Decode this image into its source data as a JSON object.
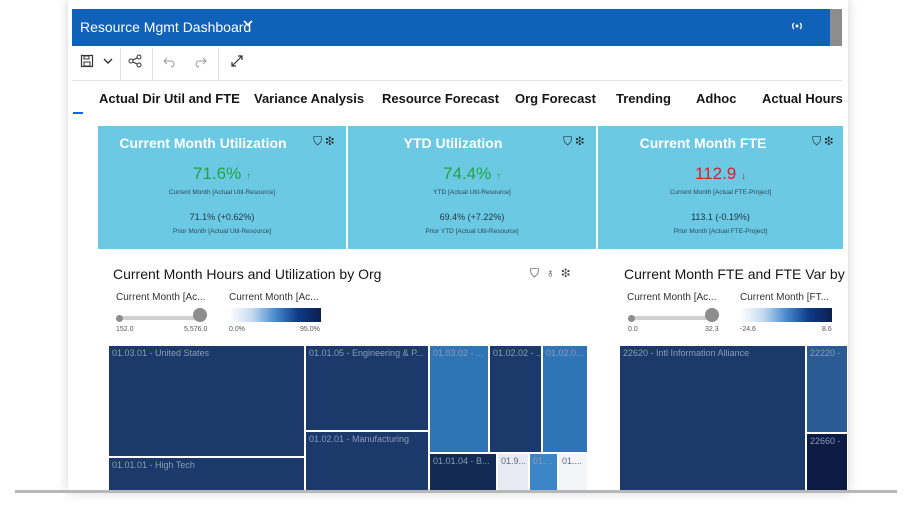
{
  "header": {
    "title": "Resource Mgmt Dashboard"
  },
  "toolbar": {
    "save_icon": "save-icon",
    "dropdown_icon": "chevron-down-icon",
    "share_icon": "share-icon",
    "undo_icon": "undo-icon",
    "redo_icon": "redo-icon",
    "fullscreen_icon": "expand-icon"
  },
  "tabs": [
    {
      "label": "Actual Dir Util and FTE"
    },
    {
      "label": "Variance Analysis"
    },
    {
      "label": "Resource Forecast"
    },
    {
      "label": "Org Forecast"
    },
    {
      "label": "Trending"
    },
    {
      "label": "Adhoc"
    },
    {
      "label": "Actual Hours"
    }
  ],
  "kpis": [
    {
      "title": "Current Month Utilization",
      "value": "71.6%",
      "arrow": "↑",
      "desc": "Current Month [Actual Util-Resource]",
      "prior": "71.1% (+0.62%)",
      "prior_desc": "Prior Month [Actual Util-Resource]",
      "trend": "up"
    },
    {
      "title": "YTD Utilization",
      "value": "74.4%",
      "arrow": "↑",
      "desc": "YTD [Actual Util-Resource]",
      "prior": "69.4% (+7.22%)",
      "prior_desc": "Prior YTD [Actual Util-Resource]",
      "trend": "up"
    },
    {
      "title": "Current Month FTE",
      "value": "112.9",
      "arrow": "↓",
      "desc": "Current Month [Actual FTE-Project]",
      "prior": "113.1 (-0.19%)",
      "prior_desc": "Prior Month [Actual FTE-Project]",
      "trend": "down"
    }
  ],
  "left_chart": {
    "title": "Current Month Hours and Utilization by Org",
    "size_legend": {
      "label": "Current Month [Ac...",
      "min": "152.0",
      "max": "5,576.0"
    },
    "color_legend": {
      "label": "Current Month [Ac...",
      "min": "0.0%",
      "max": "95.0%"
    },
    "tiles": [
      {
        "label": "01.03.01 - United States"
      },
      {
        "label": "01.01.01 - High Tech"
      },
      {
        "label": "01.01.05 - Engineering & P..."
      },
      {
        "label": "01.02.01 - Manufacturing"
      },
      {
        "label": "01.03.02 - ..."
      },
      {
        "label": "01.02.02 - ..."
      },
      {
        "label": "01.02.0..."
      },
      {
        "label": "01.01.04 - B..."
      },
      {
        "label": "01.9..."
      },
      {
        "label": "01...."
      },
      {
        "label": "01...."
      }
    ]
  },
  "right_chart": {
    "title": "Current Month FTE and FTE Var by",
    "size_legend": {
      "label": "Current Month [Ac...",
      "min": "0.0",
      "max": "32.3"
    },
    "color_legend": {
      "label": "Current Month [FT...",
      "min": "-24.6",
      "max": "8.6"
    },
    "tiles": [
      {
        "label": "22620 - Intl Information Alliance"
      },
      {
        "label": "22220 -"
      },
      {
        "label": "22660 -"
      }
    ]
  },
  "colors": {
    "header": "#0f62b8",
    "kpi_bg": "#6cc9e3",
    "up": "#1fa547",
    "down": "#da1e28"
  }
}
